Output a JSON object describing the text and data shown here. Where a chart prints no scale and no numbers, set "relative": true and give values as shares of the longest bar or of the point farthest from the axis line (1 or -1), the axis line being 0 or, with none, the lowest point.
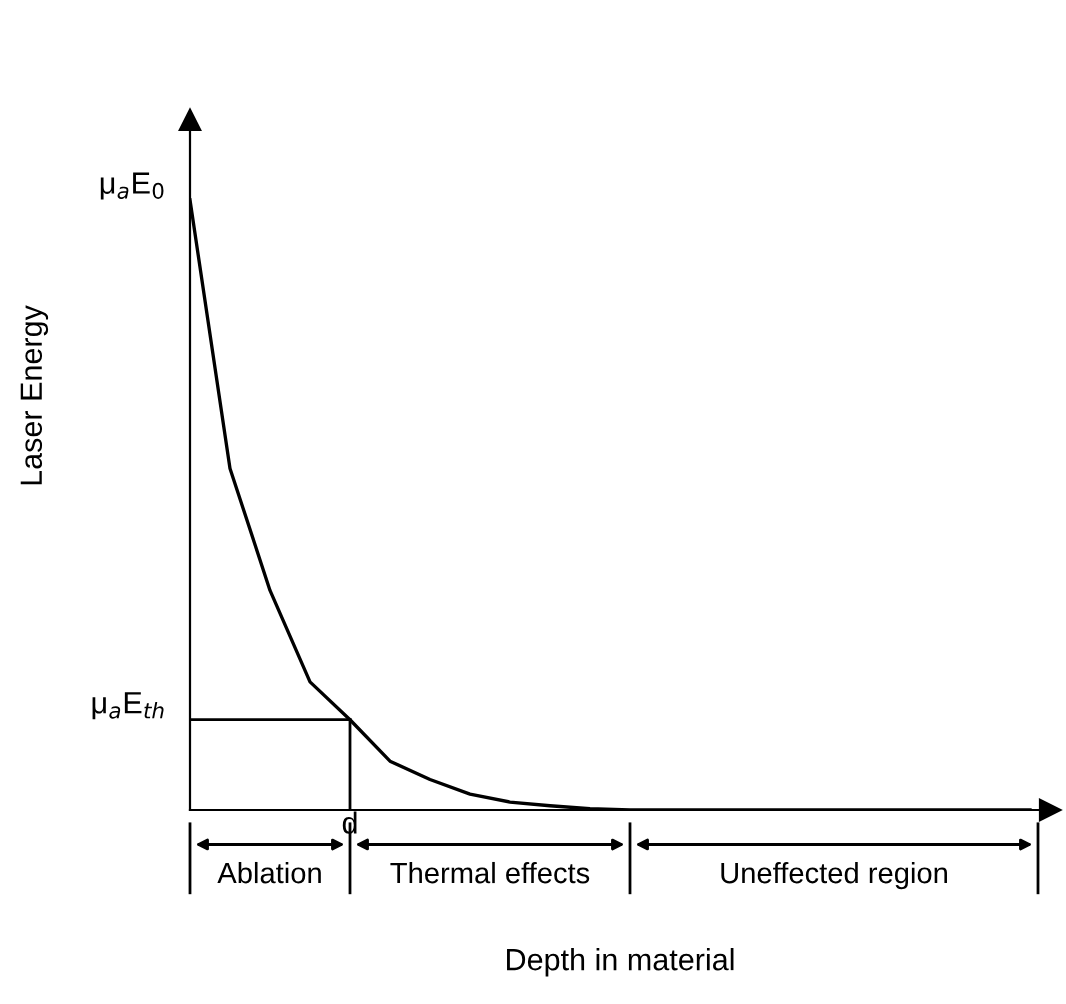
{
  "chart_data": {
    "type": "line",
    "relative": true,
    "xlabel": "Depth in material",
    "ylabel": "Laser Energy",
    "tick_labels": false,
    "legend": false,
    "marker": "none",
    "line_style": "solid",
    "categories": [
      null,
      null,
      null,
      null,
      null,
      null,
      null,
      null,
      null,
      null,
      null,
      null,
      null,
      null,
      null,
      null,
      null,
      null,
      null,
      null,
      null,
      null
    ],
    "series": [
      {
        "color": "#000000",
        "values": [
          1,
          0.56,
          0.36,
          0.21,
          0.148,
          0.08,
          0.05,
          0.026,
          0.013,
          0.007,
          0.002,
          0,
          0,
          0,
          0,
          0,
          0,
          0,
          0,
          0,
          0,
          0
        ]
      }
    ],
    "ref_lines": [
      {
        "axis": "y",
        "value": 0.148,
        "label": "μ$_{a}$E$_{th}$",
        "color": "#000000"
      }
    ],
    "annotations": [
      "μ$_{a}$E$_{0}$",
      "d",
      "Ablation",
      "Thermal effects",
      "Uneffected region"
    ]
  }
}
